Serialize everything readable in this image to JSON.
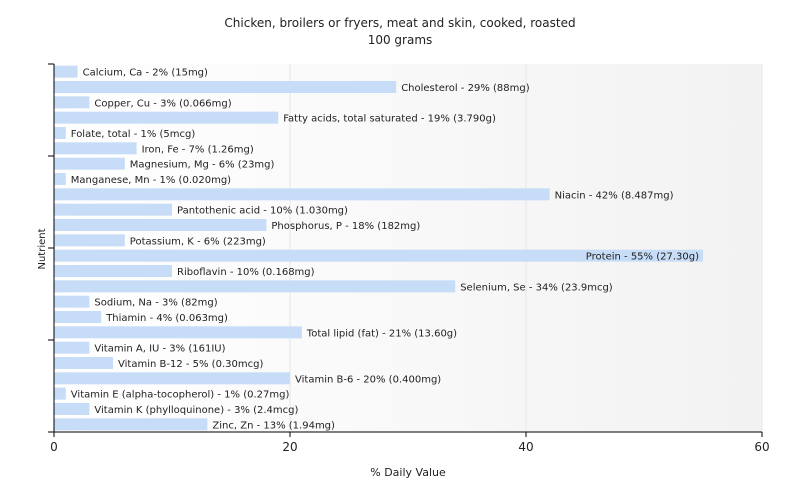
{
  "chart_data": {
    "type": "bar",
    "orientation": "horizontal",
    "title": "Chicken, broilers or fryers, meat and skin, cooked, roasted",
    "subtitle": "100 grams",
    "xlabel": "% Daily Value",
    "ylabel": "Nutrient",
    "xlim": [
      0,
      60
    ],
    "x_ticks": [
      0,
      20,
      40,
      60
    ],
    "grid": true,
    "bar_color": "#c6dcf7",
    "categories": [
      "Calcium, Ca",
      "Cholesterol",
      "Copper, Cu",
      "Fatty acids, total saturated",
      "Folate, total",
      "Iron, Fe",
      "Magnesium, Mg",
      "Manganese, Mn",
      "Niacin",
      "Pantothenic acid",
      "Phosphorus, P",
      "Potassium, K",
      "Protein",
      "Riboflavin",
      "Selenium, Se",
      "Sodium, Na",
      "Thiamin",
      "Total lipid (fat)",
      "Vitamin A, IU",
      "Vitamin B-12",
      "Vitamin B-6",
      "Vitamin E (alpha-tocopherol)",
      "Vitamin K (phylloquinone)",
      "Zinc, Zn"
    ],
    "values": [
      2,
      29,
      3,
      19,
      1,
      7,
      6,
      1,
      42,
      10,
      18,
      6,
      55,
      10,
      34,
      3,
      4,
      21,
      3,
      5,
      20,
      1,
      3,
      13
    ],
    "amounts": [
      "15mg",
      "88mg",
      "0.066mg",
      "3.790g",
      "5mcg",
      "1.26mg",
      "23mg",
      "0.020mg",
      "8.487mg",
      "1.030mg",
      "182mg",
      "223mg",
      "27.30g",
      "0.168mg",
      "23.9mcg",
      "82mg",
      "0.063mg",
      "13.60g",
      "161IU",
      "0.30mcg",
      "0.400mg",
      "0.27mg",
      "2.4mcg",
      "1.94mg"
    ]
  }
}
